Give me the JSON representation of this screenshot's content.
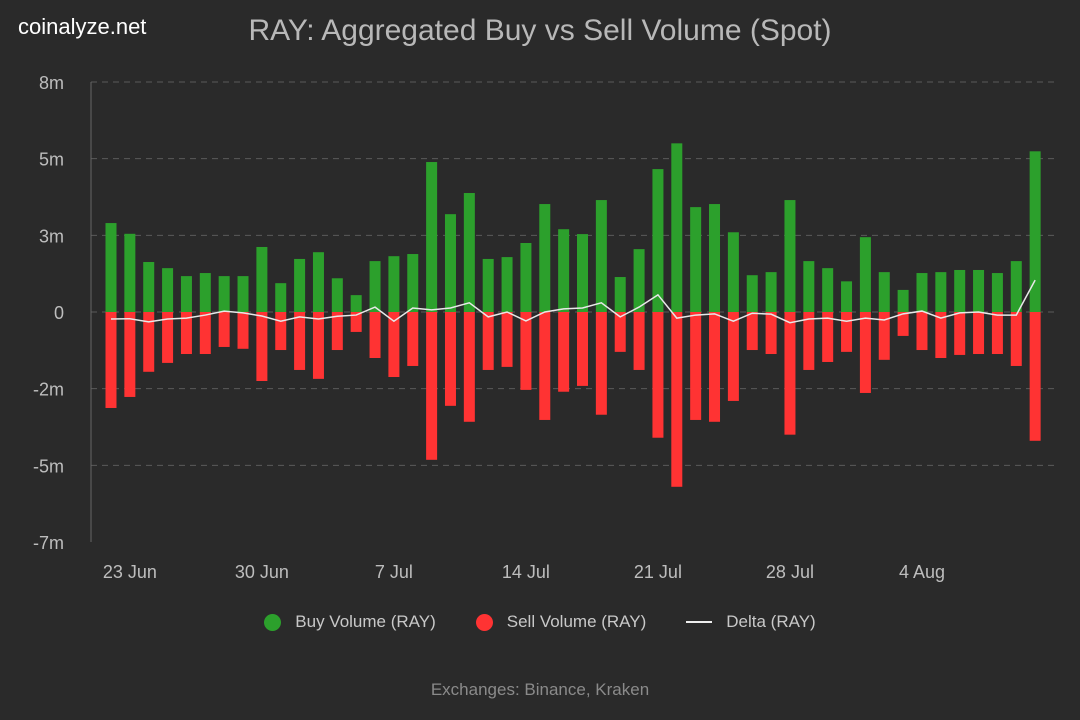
{
  "brand": "coinalyze.net",
  "footer": "Exchanges: Binance, Kraken",
  "legend": [
    {
      "label": "Buy Volume (RAY)",
      "color": "#2ca02c"
    },
    {
      "label": "Sell Volume (RAY)",
      "color": "#ff3333"
    },
    {
      "label": "Delta (RAY)",
      "color": "#eeeeee"
    }
  ],
  "chart_data": {
    "type": "bar",
    "title": "RAY: Aggregated Buy vs Sell Volume (Spot)",
    "xlabel": "",
    "ylabel": "",
    "unit": "millions RAY",
    "ylim": [
      -7.5,
      7.5
    ],
    "y_ticks": [
      {
        "value": 7.5,
        "label": "8m"
      },
      {
        "value": 5,
        "label": "5m"
      },
      {
        "value": 2.5,
        "label": "3m"
      },
      {
        "value": 0,
        "label": "0"
      },
      {
        "value": -2.5,
        "label": "-2m"
      },
      {
        "value": -5,
        "label": "-5m"
      },
      {
        "value": -7.5,
        "label": "-7m"
      }
    ],
    "x_ticks": [
      {
        "index": 1,
        "label": "23 Jun"
      },
      {
        "index": 8,
        "label": "30 Jun"
      },
      {
        "index": 15,
        "label": "7 Jul"
      },
      {
        "index": 22,
        "label": "14 Jul"
      },
      {
        "index": 29,
        "label": "21 Jul"
      },
      {
        "index": 36,
        "label": "28 Jul"
      },
      {
        "index": 43,
        "label": "4 Aug"
      }
    ],
    "grid": true,
    "legend_position": "bottom",
    "categories": [
      "22 Jun",
      "23 Jun",
      "24 Jun",
      "25 Jun",
      "26 Jun",
      "27 Jun",
      "28 Jun",
      "29 Jun",
      "30 Jun",
      "1 Jul",
      "2 Jul",
      "3 Jul",
      "4 Jul",
      "5 Jul",
      "6 Jul",
      "7 Jul",
      "8 Jul",
      "9 Jul",
      "10 Jul",
      "11 Jul",
      "12 Jul",
      "13 Jul",
      "14 Jul",
      "15 Jul",
      "16 Jul",
      "17 Jul",
      "18 Jul",
      "19 Jul",
      "20 Jul",
      "21 Jul",
      "22 Jul",
      "23 Jul",
      "24 Jul",
      "25 Jul",
      "26 Jul",
      "27 Jul",
      "28 Jul",
      "29 Jul",
      "30 Jul",
      "31 Jul",
      "1 Aug",
      "2 Aug",
      "3 Aug",
      "4 Aug",
      "5 Aug",
      "6 Aug",
      "7 Aug",
      "8 Aug",
      "9 Aug",
      "10 Aug"
    ],
    "series": [
      {
        "name": "Buy Volume (RAY)",
        "values": [
          2.9,
          2.55,
          1.63,
          1.43,
          1.17,
          1.27,
          1.17,
          1.17,
          2.12,
          0.94,
          1.73,
          1.95,
          1.1,
          0.55,
          1.66,
          1.82,
          1.89,
          4.89,
          3.19,
          3.88,
          1.73,
          1.79,
          2.25,
          3.52,
          2.7,
          2.54,
          3.65,
          1.14,
          2.05,
          4.66,
          5.5,
          3.42,
          3.52,
          2.6,
          1.2,
          1.3,
          3.65,
          1.66,
          1.43,
          1.0,
          2.44,
          1.3,
          0.72,
          1.27,
          1.3,
          1.37,
          1.37,
          1.27,
          1.66,
          5.24
        ]
      },
      {
        "name": "Sell Volume (RAY)",
        "values": [
          -3.13,
          -2.77,
          -1.95,
          -1.66,
          -1.37,
          -1.37,
          -1.14,
          -1.2,
          -2.25,
          -1.24,
          -1.89,
          -2.18,
          -1.24,
          -0.65,
          -1.5,
          -2.12,
          -1.76,
          -4.82,
          -3.06,
          -3.58,
          -1.89,
          -1.79,
          -2.54,
          -3.52,
          -2.6,
          -2.41,
          -3.35,
          -1.3,
          -1.89,
          -4.1,
          -5.7,
          -3.52,
          -3.58,
          -2.9,
          -1.24,
          -1.37,
          -4.0,
          -1.89,
          -1.63,
          -1.3,
          -2.64,
          -1.56,
          -0.78,
          -1.24,
          -1.5,
          -1.4,
          -1.37,
          -1.37,
          -1.76,
          -4.2
        ]
      },
      {
        "name": "Delta (RAY)",
        "values": [
          -0.23,
          -0.22,
          -0.32,
          -0.23,
          -0.2,
          -0.1,
          0.03,
          -0.03,
          -0.13,
          -0.3,
          -0.16,
          -0.23,
          -0.14,
          -0.1,
          0.16,
          -0.3,
          0.13,
          0.07,
          0.13,
          0.3,
          -0.16,
          0.0,
          -0.29,
          0.0,
          0.1,
          0.13,
          0.3,
          -0.16,
          0.16,
          0.56,
          -0.2,
          -0.1,
          -0.06,
          -0.3,
          -0.04,
          -0.07,
          -0.35,
          -0.23,
          -0.2,
          -0.3,
          -0.2,
          -0.26,
          -0.06,
          0.03,
          -0.2,
          -0.03,
          0.0,
          -0.1,
          -0.1,
          1.04
        ]
      }
    ]
  }
}
